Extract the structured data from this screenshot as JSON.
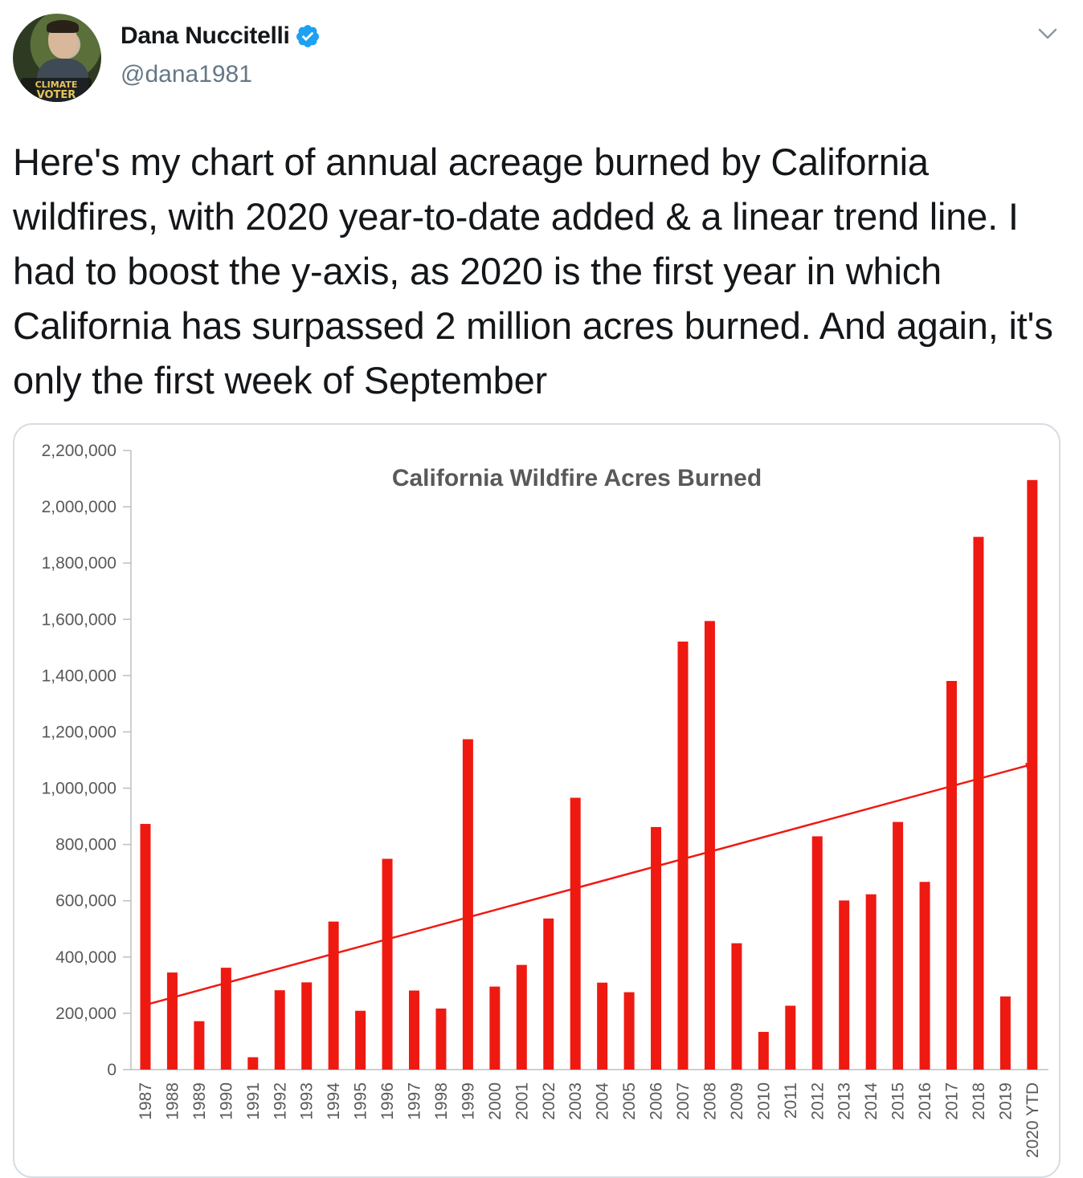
{
  "tweet": {
    "display_name": "Dana Nuccitelli",
    "handle": "@dana1981",
    "avatar_badge_line1": "CLIMATE",
    "avatar_badge_line2": "VOTER",
    "text": "Here's my chart of annual acreage burned by California wildfires, with 2020 year-to-date added & a linear trend line. I had to boost the y-axis, as 2020 is the first year in which California has surpassed 2 million acres burned. And again, it's only the first week of September"
  },
  "icons": {
    "verified": "verified-badge-icon",
    "more": "chevron-down-icon"
  },
  "colors": {
    "bar": "#ee1a12",
    "trend": "#ee1a12",
    "verified": "#1da1f2",
    "handle": "#657786"
  },
  "chart_data": {
    "type": "bar",
    "title": "California Wildfire Acres Burned",
    "categories": [
      "1987",
      "1988",
      "1989",
      "1990",
      "1991",
      "1992",
      "1993",
      "1994",
      "1995",
      "1996",
      "1997",
      "1998",
      "1999",
      "2000",
      "2001",
      "2002",
      "2003",
      "2004",
      "2005",
      "2006",
      "2007",
      "2008",
      "2009",
      "2010",
      "2011",
      "2012",
      "2013",
      "2014",
      "2015",
      "2016",
      "2017",
      "2018",
      "2019",
      "2020 YTD"
    ],
    "values": [
      873000,
      345000,
      172000,
      362000,
      44000,
      282000,
      310000,
      526000,
      209000,
      749000,
      281000,
      217000,
      1174000,
      295000,
      372000,
      537000,
      966000,
      309000,
      275000,
      862000,
      1521000,
      1594000,
      449000,
      134000,
      227000,
      829000,
      601000,
      623000,
      880000,
      667000,
      1381000,
      1893000,
      260000,
      2095000
    ],
    "ylim": [
      0,
      2200000
    ],
    "yticks": [
      0,
      200000,
      400000,
      600000,
      800000,
      1000000,
      1200000,
      1400000,
      1600000,
      1800000,
      2000000,
      2200000
    ],
    "ytick_labels": [
      "0",
      "200,000",
      "400,000",
      "600,000",
      "800,000",
      "1,000,000",
      "1,200,000",
      "1,400,000",
      "1,600,000",
      "1,800,000",
      "2,000,000",
      "2,200,000"
    ],
    "trend_line": {
      "start_value": 230000,
      "end_value": 1085000
    },
    "grid": false,
    "legend": "none"
  }
}
